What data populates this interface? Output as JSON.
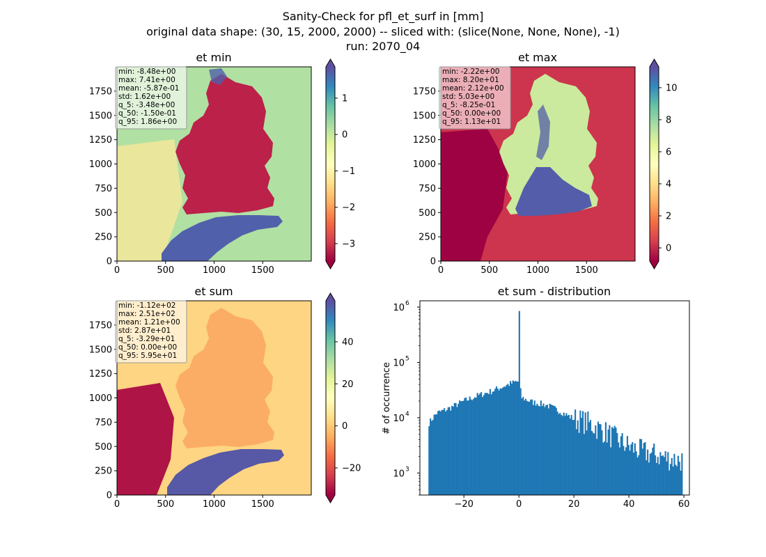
{
  "suptitle": [
    "Sanity-Check for pfl_et_surf in [mm]",
    "original data shape: (30, 15, 2000, 2000) -- sliced with: (slice(None, None, None), -1)",
    "run: 2070_04"
  ],
  "colormap": "Spectral",
  "chart_data": [
    {
      "type": "heatmap",
      "title": "et min",
      "xlim": [
        0,
        2000
      ],
      "ylim": [
        0,
        2000
      ],
      "xticks": [
        "0",
        "500",
        "1000",
        "1500"
      ],
      "yticks": [
        "0",
        "250",
        "500",
        "750",
        "1000",
        "1250",
        "1500",
        "1750"
      ],
      "colorbar": {
        "range": [
          -3.48,
          1.86
        ],
        "ticks": [
          1,
          0,
          -1,
          -2,
          -3
        ],
        "tick_labels": [
          "1",
          "0",
          "−1",
          "−2",
          "−3"
        ],
        "extend": "both"
      },
      "stats": [
        "min: -8.48e+00",
        "max: 7.41e+00",
        "mean: -5.87e-01",
        "std: 1.62e+00",
        "q_5: -3.48e+00",
        "q_50: -1.50e-01",
        "q_95: 1.86e+00"
      ],
      "field_values": {
        "background": 0.2,
        "country": -3.2,
        "alpine_lake": 1.7,
        "west_land": -1.2
      }
    },
    {
      "type": "heatmap",
      "title": "et max",
      "xlim": [
        0,
        2000
      ],
      "ylim": [
        0,
        2000
      ],
      "xticks": [
        "0",
        "500",
        "1000",
        "1500"
      ],
      "yticks": [
        "0",
        "250",
        "500",
        "750",
        "1000",
        "1250",
        "1500",
        "1750"
      ],
      "colorbar": {
        "range": [
          -0.825,
          11.3
        ],
        "ticks": [
          10,
          8,
          6,
          4,
          2,
          0
        ],
        "tick_labels": [
          "10",
          "8",
          "6",
          "4",
          "2",
          "0"
        ],
        "extend": "both"
      },
      "stats": [
        "min: -2.22e+00",
        "max: 8.20e+01",
        "mean: 2.12e+00",
        "std: 5.03e+00",
        "q_5: -8.25e-01",
        "q_50: 0.00e+00",
        "q_95: 1.13e+01"
      ],
      "field_values": {
        "background": 0.2,
        "country": 7.0,
        "south": 11.0,
        "west_land": -0.8
      }
    },
    {
      "type": "heatmap",
      "title": "et sum",
      "xlim": [
        0,
        2000
      ],
      "ylim": [
        0,
        2000
      ],
      "xticks": [
        "0",
        "500",
        "1000",
        "1500"
      ],
      "yticks": [
        "0",
        "250",
        "500",
        "750",
        "1000",
        "1250",
        "1500",
        "1750"
      ],
      "colorbar": {
        "range": [
          -32.9,
          59.5
        ],
        "ticks": [
          40,
          20,
          0,
          -20
        ],
        "tick_labels": [
          "40",
          "20",
          "0",
          "−20"
        ],
        "extend": "both"
      },
      "stats": [
        "min: -1.12e+02",
        "max: 2.51e+02",
        "mean: 1.21e+00",
        "std: 2.87e+01",
        "q_5: -3.29e+01",
        "q_50: 0.00e+00",
        "q_95: 5.95e+01"
      ],
      "field_values": {
        "background": 2.0,
        "country": -10.0,
        "alpine_lake": 58.0,
        "west_land": -30.0
      }
    },
    {
      "type": "bar",
      "title": "et sum - distribution",
      "ylabel": "# of occurrence",
      "xlabel": "",
      "y_scale": "log",
      "xlim": [
        -36,
        62
      ],
      "ylim": [
        400,
        1300000
      ],
      "xticks": [
        -20,
        0,
        20,
        40,
        60
      ],
      "xtick_labels": [
        "−20",
        "0",
        "20",
        "40",
        "60"
      ],
      "ytick_labels": [
        "10^3",
        "10^4",
        "10^5",
        "10^6"
      ],
      "bin_range": [
        -32.9,
        59.5
      ],
      "bin_count": 200,
      "profile": {
        "x": [
          -32.9,
          -30,
          -25,
          -20,
          -15,
          -10,
          -5,
          -2,
          -1,
          0,
          1,
          5,
          10,
          15,
          20,
          25,
          30,
          35,
          40,
          45,
          50,
          55,
          59.5
        ],
        "counts": [
          7800,
          12000,
          15000,
          20000,
          25000,
          30000,
          38000,
          43000,
          45000,
          45000,
          23000,
          19000,
          17000,
          13000,
          9500,
          8000,
          6000,
          4200,
          3000,
          2400,
          2100,
          1800,
          1700
        ]
      },
      "spike": {
        "x": 0,
        "count": 850000
      }
    }
  ]
}
